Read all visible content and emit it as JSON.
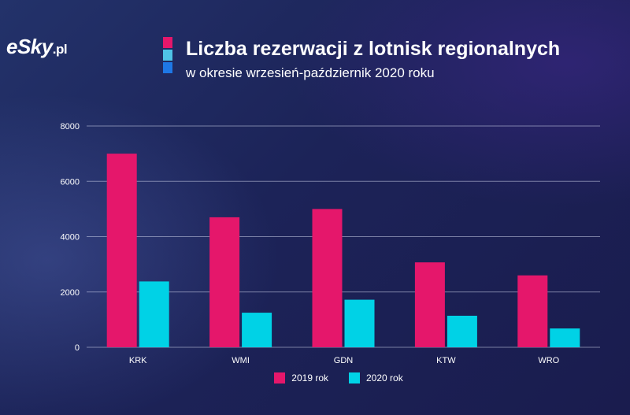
{
  "logo": {
    "name": "eSky",
    "suffix": ".pl"
  },
  "colors": {
    "series_2019": "#e5176b",
    "series_2020": "#00d2e6",
    "title_marks": [
      "#e5176b",
      "#4fc3e6",
      "#1e78e6"
    ],
    "grid": "#c9cde6",
    "text": "#ffffff"
  },
  "chart_data": {
    "type": "bar",
    "title": "Liczba rezerwacji z lotnisk regionalnych",
    "subtitle": "w okresie wrzesień-październik 2020 roku",
    "categories": [
      "KRK",
      "WMI",
      "GDN",
      "KTW",
      "WRO"
    ],
    "series": [
      {
        "name": "2019 rok",
        "values": [
          7000,
          4700,
          5000,
          3070,
          2600
        ]
      },
      {
        "name": "2020 rok",
        "values": [
          2380,
          1250,
          1720,
          1140,
          680
        ]
      }
    ],
    "y_ticks": [
      "0",
      "2000",
      "4000",
      "6000",
      "8000"
    ],
    "ylim": [
      0,
      8000
    ],
    "grid": true,
    "legend": "bottom-center"
  }
}
